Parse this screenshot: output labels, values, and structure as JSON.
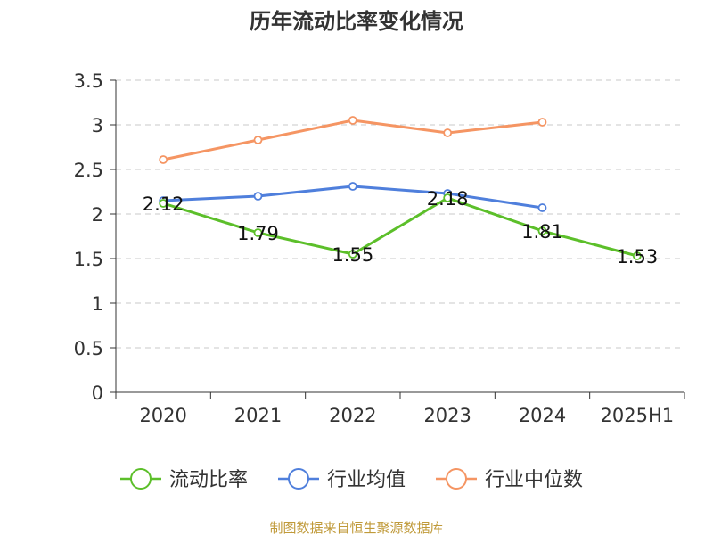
{
  "chart_data": {
    "type": "line",
    "title": "历年流动比率变化情况",
    "categories": [
      "2020",
      "2021",
      "2022",
      "2023",
      "2024",
      "2025H1"
    ],
    "y_ticks": [
      "0",
      "0.5",
      "1",
      "1.5",
      "2",
      "2.5",
      "3",
      "3.5"
    ],
    "ylim": [
      0,
      3.5
    ],
    "grid": "horizontal dashed",
    "legend_position": "bottom",
    "series": [
      {
        "name": "流动比率",
        "color": "#5cbf2a",
        "values": [
          2.12,
          1.79,
          1.55,
          2.18,
          1.81,
          1.53
        ],
        "labels": [
          "2.12",
          "1.79",
          "1.55",
          "2.18",
          "1.81",
          "1.53"
        ]
      },
      {
        "name": "行业均值",
        "color": "#4f7fdc",
        "values": [
          2.15,
          2.2,
          2.31,
          2.23,
          2.07,
          null
        ]
      },
      {
        "name": "行业中位数",
        "color": "#f59563",
        "values": [
          2.61,
          2.83,
          3.05,
          2.91,
          3.03,
          null
        ]
      }
    ],
    "source_note": "制图数据来自恒生聚源数据库",
    "source_color": "#c09a3a"
  }
}
